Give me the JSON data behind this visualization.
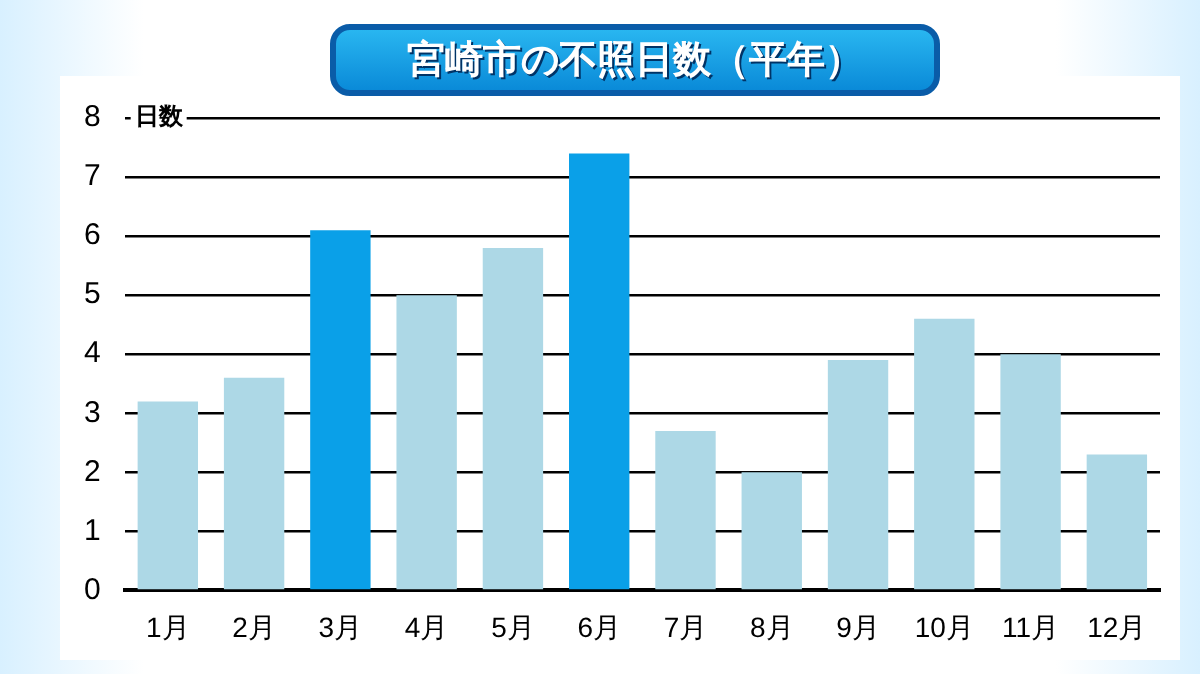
{
  "chart_data": {
    "type": "bar",
    "title": "宮崎市の不照日数（平年）",
    "ylabel": "日数",
    "categories": [
      "1月",
      "2月",
      "3月",
      "4月",
      "5月",
      "6月",
      "7月",
      "8月",
      "9月",
      "10月",
      "11月",
      "12月"
    ],
    "values": [
      3.2,
      3.6,
      6.1,
      5.0,
      5.8,
      7.4,
      2.7,
      2.0,
      3.9,
      4.6,
      4.0,
      2.3
    ],
    "colors": [
      "#add8e6",
      "#add8e6",
      "#0aa0e8",
      "#add8e6",
      "#add8e6",
      "#0aa0e8",
      "#add8e6",
      "#add8e6",
      "#add8e6",
      "#add8e6",
      "#add8e6",
      "#add8e6"
    ],
    "ylim": [
      0,
      8
    ],
    "yticks": [
      0,
      1,
      2,
      3,
      4,
      5,
      6,
      7,
      8
    ],
    "grid": "y",
    "legend": false
  }
}
